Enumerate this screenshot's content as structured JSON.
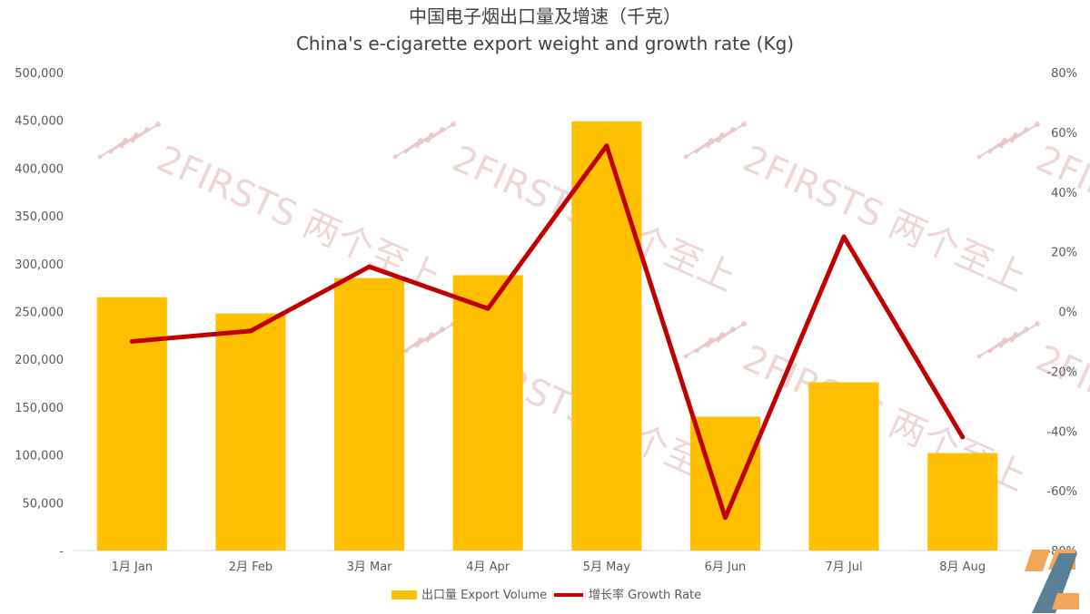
{
  "chart_data": {
    "type": "bar+line",
    "title": "中国电子烟出口量及增速（千克）",
    "subtitle": "China's e-cigarette export weight and growth rate (Kg)",
    "categories": [
      "1月 Jan",
      "2月 Feb",
      "3月 Mar",
      "4月 Apr",
      "5月 May",
      "6月 Jun",
      "7月 Jul",
      "8月 Aug"
    ],
    "series": [
      {
        "name": "出口量 Export Volume",
        "type": "bar",
        "axis": "left",
        "color": "#FFC000",
        "values": [
          265000,
          248000,
          285000,
          288000,
          449000,
          140000,
          176000,
          102000
        ]
      },
      {
        "name": "增长率 Growth Rate",
        "type": "line",
        "axis": "right",
        "color": "#C00000",
        "values": [
          -10,
          -6.5,
          15,
          1,
          55.5,
          -69,
          25,
          -42
        ]
      }
    ],
    "y_left": {
      "min": 0,
      "max": 500000,
      "step": 50000,
      "tick_labels": [
        "-",
        "50,000",
        "100,000",
        "150,000",
        "200,000",
        "250,000",
        "300,000",
        "350,000",
        "400,000",
        "450,000",
        "500,000"
      ]
    },
    "y_right": {
      "min": -80,
      "max": 80,
      "step": 20,
      "tick_labels": [
        "-80%",
        "-60%",
        "-40%",
        "-20%",
        "0%",
        "20%",
        "40%",
        "60%",
        "80%"
      ]
    },
    "legend_position": "bottom-center",
    "grid": false
  },
  "watermark": {
    "text": "2FIRSTS 两个至上"
  },
  "logo_icon": "2firsts-logo-icon"
}
